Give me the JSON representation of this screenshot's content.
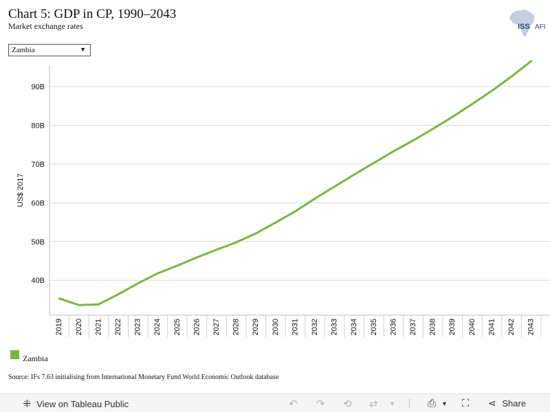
{
  "header": {
    "title": "Chart 5: GDP in CP, 1990–2043",
    "subtitle": "Market exchange rates"
  },
  "logo": {
    "text": "ISS",
    "text2": "AFI"
  },
  "filter": {
    "selected": "Zambia"
  },
  "chart_data": {
    "type": "line",
    "ylabel": "US$ 2017",
    "xlabel": "",
    "x": [
      "2019",
      "2020",
      "2021",
      "2022",
      "2023",
      "2024",
      "2025",
      "2026",
      "2027",
      "2028",
      "2029",
      "2030",
      "2031",
      "2032",
      "2033",
      "2034",
      "2035",
      "2036",
      "2037",
      "2038",
      "2039",
      "2040",
      "2041",
      "2042",
      "2043"
    ],
    "series": [
      {
        "name": "Zambia",
        "color": "#7cb342",
        "values": [
          35.3,
          33.6,
          33.8,
          36.4,
          39.2,
          41.8,
          43.8,
          45.9,
          47.9,
          49.8,
          52.1,
          54.9,
          57.8,
          61.1,
          64.2,
          67.3,
          70.3,
          73.3,
          76.1,
          79.1,
          82.2,
          85.5,
          88.9,
          92.6,
          96.6
        ]
      }
    ],
    "yticks": [
      "40B",
      "50B",
      "60B",
      "70B",
      "80B",
      "90B"
    ],
    "ytick_values": [
      40,
      50,
      60,
      70,
      80,
      90
    ],
    "ylim": [
      31,
      95.5
    ],
    "grid": true,
    "legend_position": "bottom-left"
  },
  "source": "Source: IFs 7.63 initialising from International Monetary Fund World Economic Outlook database",
  "toolbar": {
    "view_label": "View on Tableau Public",
    "share_label": "Share"
  },
  "colors": {
    "accent": "#7cb342",
    "grid": "#d9d9d9"
  }
}
